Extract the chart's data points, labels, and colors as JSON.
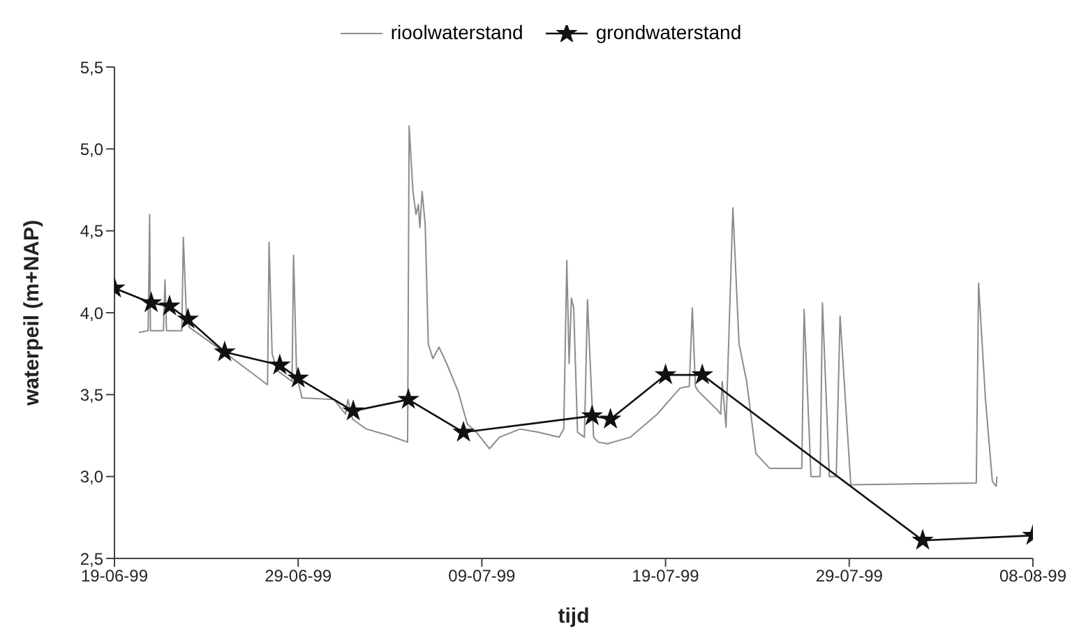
{
  "chart_data": {
    "type": "line",
    "xlabel": "tijd",
    "ylabel": "waterpeil (m+NAP)",
    "legend": "top",
    "xlim": [
      "1999-06-19",
      "1999-08-08"
    ],
    "xticks": [
      {
        "value": "1999-06-19",
        "label": "19-06-99"
      },
      {
        "value": "1999-06-29",
        "label": "29-06-99"
      },
      {
        "value": "1999-07-09",
        "label": "09-07-99"
      },
      {
        "value": "1999-07-19",
        "label": "19-07-99"
      },
      {
        "value": "1999-07-29",
        "label": "29-07-99"
      },
      {
        "value": "1999-08-08",
        "label": "08-08-99"
      }
    ],
    "ylim": [
      2.5,
      5.5
    ],
    "yticks": [
      {
        "value": 2.5,
        "label": "2,5"
      },
      {
        "value": 3.0,
        "label": "3,0"
      },
      {
        "value": 3.5,
        "label": "3,5"
      },
      {
        "value": 4.0,
        "label": "4,0"
      },
      {
        "value": 4.5,
        "label": "4,5"
      },
      {
        "value": 5.0,
        "label": "5,0"
      },
      {
        "value": 5.5,
        "label": "5,5"
      }
    ],
    "series": [
      {
        "name": "rioolwaterstand",
        "color": "#8c8c8c",
        "marker": "none",
        "x": [
          "1999-06-20T08:00",
          "1999-06-20T20:00",
          "1999-06-20T22:00",
          "1999-06-20T23:00",
          "1999-06-21T16:00",
          "1999-06-21T18:00",
          "1999-06-21T20:00",
          "1999-06-22T16:00",
          "1999-06-22T18:00",
          "1999-06-22T22:00",
          "1999-06-23T02:00",
          "1999-06-25T02:00",
          "1999-06-27T08:00",
          "1999-06-27T10:00",
          "1999-06-27T14:00",
          "1999-06-27T20:00",
          "1999-06-28T16:00",
          "1999-06-28T18:00",
          "1999-06-28T22:00",
          "1999-06-29T05:00",
          "1999-06-30T23:00",
          "1999-07-01T14:00",
          "1999-07-01T17:00",
          "1999-07-01T23:00",
          "1999-07-02T17:00",
          "1999-07-03T23:00",
          "1999-07-04T23:00",
          "1999-07-05T01:00",
          "1999-07-05T06:00",
          "1999-07-05T10:00",
          "1999-07-05T13:00",
          "1999-07-05T15:00",
          "1999-07-05T18:00",
          "1999-07-05T22:00",
          "1999-07-06T02:00",
          "1999-07-06T08:00",
          "1999-07-06T16:00",
          "1999-07-07T02:00",
          "1999-07-07T17:00",
          "1999-07-08T05:00",
          "1999-07-08T17:00",
          "1999-07-09T10:00",
          "1999-07-09T23:00",
          "1999-07-11T02:00",
          "1999-07-12T02:00",
          "1999-07-13T05:00",
          "1999-07-13T11:00",
          "1999-07-13T15:00",
          "1999-07-13T18:00",
          "1999-07-13T21:00",
          "1999-07-14T00:00",
          "1999-07-14T05:00",
          "1999-07-14T14:00",
          "1999-07-14T18:00",
          "1999-07-14T21:00",
          "1999-07-15T02:00",
          "1999-07-15T08:00",
          "1999-07-15T20:00",
          "1999-07-17T02:00",
          "1999-07-18T13:00",
          "1999-07-19T19:00",
          "1999-07-20T07:00",
          "1999-07-20T11:00",
          "1999-07-20T15:00",
          "1999-07-20T19:00",
          "1999-07-21T19:00",
          "1999-07-22T00:00",
          "1999-07-22T02:00",
          "1999-07-22T07:00",
          "1999-07-22T16:00",
          "1999-07-23T00:00",
          "1999-07-23T10:00",
          "1999-07-23T22:00",
          "1999-07-24T16:00",
          "1999-07-26T10:00",
          "1999-07-26T13:00",
          "1999-07-26T22:00",
          "1999-07-27T10:00",
          "1999-07-27T13:00",
          "1999-07-27T22:00",
          "1999-07-28T07:00",
          "1999-07-28T12:00",
          "1999-07-29T02:00",
          "1999-08-04T22:00",
          "1999-08-05T01:00",
          "1999-08-05T10:00",
          "1999-08-05T19:00",
          "1999-08-06T00:00",
          "1999-08-06T01:00"
        ],
        "values": [
          3.88,
          3.89,
          4.6,
          3.89,
          3.89,
          4.2,
          3.89,
          3.89,
          4.46,
          3.98,
          3.91,
          3.75,
          3.56,
          4.43,
          3.75,
          3.65,
          3.58,
          4.35,
          3.62,
          3.48,
          3.47,
          3.38,
          3.47,
          3.35,
          3.29,
          3.25,
          3.21,
          5.14,
          4.74,
          4.6,
          4.66,
          4.52,
          4.74,
          4.54,
          3.81,
          3.72,
          3.79,
          3.69,
          3.52,
          3.32,
          3.27,
          3.17,
          3.24,
          3.29,
          3.27,
          3.24,
          3.29,
          4.32,
          3.69,
          4.09,
          4.03,
          3.27,
          3.24,
          4.08,
          3.75,
          3.24,
          3.21,
          3.2,
          3.24,
          3.38,
          3.54,
          3.55,
          4.03,
          3.55,
          3.52,
          3.41,
          3.38,
          3.58,
          3.3,
          4.64,
          3.81,
          3.58,
          3.14,
          3.05,
          3.05,
          4.02,
          3.0,
          3.0,
          4.06,
          3.0,
          3.0,
          3.98,
          2.95,
          2.96,
          4.18,
          3.47,
          2.97,
          2.94,
          3.0
        ]
      },
      {
        "name": "grondwaterstand",
        "color": "#111111",
        "marker": "star",
        "x": [
          "1999-06-19",
          "1999-06-21",
          "1999-06-22",
          "1999-06-23",
          "1999-06-25",
          "1999-06-28",
          "1999-06-29",
          "1999-07-02",
          "1999-07-05",
          "1999-07-08",
          "1999-07-15",
          "1999-07-16",
          "1999-07-19",
          "1999-07-21",
          "1999-08-02",
          "1999-08-08"
        ],
        "values": [
          4.15,
          4.06,
          4.04,
          3.96,
          3.76,
          3.68,
          3.6,
          3.4,
          3.47,
          3.27,
          3.37,
          3.35,
          3.62,
          3.62,
          2.61,
          2.64
        ]
      }
    ]
  }
}
